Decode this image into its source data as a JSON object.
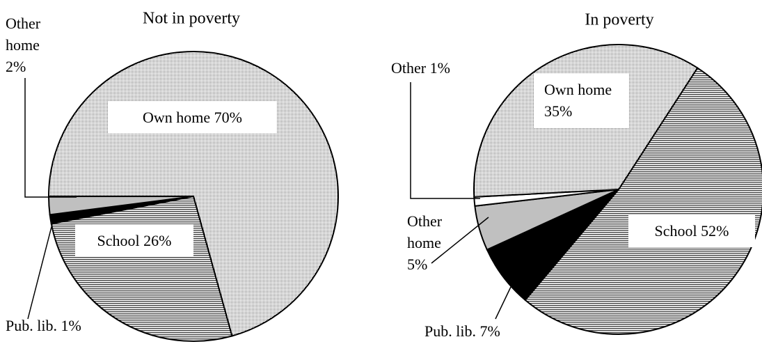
{
  "chart_data": [
    {
      "type": "pie",
      "title": "Not in poverty",
      "categories": [
        "Own home",
        "School",
        "Pub. lib.",
        "Other home"
      ],
      "values": [
        70,
        26,
        1,
        2
      ],
      "value_labels": [
        "70%",
        "26%",
        "1%",
        "2%"
      ],
      "colors": [
        "#555555",
        "#444444",
        "#000000",
        "#c0c0c0"
      ],
      "patterns": [
        "dots",
        "lines",
        "solid",
        "solid"
      ]
    },
    {
      "type": "pie",
      "title": "In poverty",
      "categories": [
        "School",
        "Pub. lib.",
        "Other home",
        "Other",
        "Own home"
      ],
      "values": [
        52,
        7,
        5,
        1,
        35
      ],
      "value_labels": [
        "52%",
        "7%",
        "5%",
        "1%",
        "35%"
      ],
      "colors": [
        "#444444",
        "#000000",
        "#c0c0c0",
        "#ffffff",
        "#555555"
      ],
      "patterns": [
        "lines",
        "solid",
        "solid",
        "solid",
        "dots"
      ]
    }
  ]
}
